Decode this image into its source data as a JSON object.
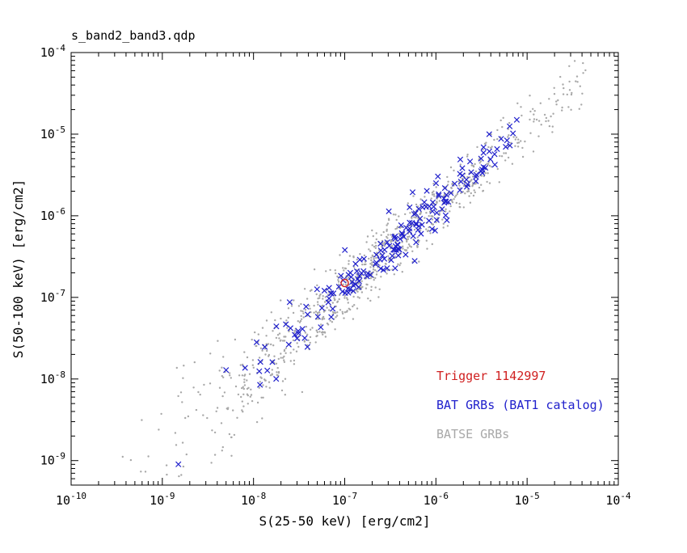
{
  "window": {
    "title": "s_band2_band3.qdp"
  },
  "chart_data": {
    "type": "scatter",
    "title": "s_band2_band3.qdp",
    "xlabel": "S(25-50 keV) [erg/cm2]",
    "ylabel": "S(50-100 keV) [erg/cm2]",
    "x_scale": "log",
    "y_scale": "log",
    "x_range_log10": [
      -10,
      -4
    ],
    "y_range_log10": [
      -9.3,
      -4
    ],
    "x_tick_exponents": [
      -10,
      -9,
      -8,
      -7,
      -6,
      -5,
      -4
    ],
    "y_tick_exponents": [
      -9,
      -8,
      -7,
      -6,
      -5,
      -4
    ],
    "grid": false,
    "frame_color": "#000000",
    "legend": {
      "position": "lower-right",
      "entries": [
        {
          "label": "Trigger 1142997",
          "color": "#d02020"
        },
        {
          "label": "BAT GRBs (BAT1 catalog)",
          "color": "#2020cc"
        },
        {
          "label": "BATSE GRBs",
          "color": "#a8a8a8"
        }
      ]
    },
    "series": [
      {
        "name": "BATSE GRBs",
        "marker": "point",
        "color": "#a8a8a8",
        "count": 950,
        "seed": 42,
        "logx_mean": -6.7,
        "logx_sigma": 1.15,
        "logx_min": -9.6,
        "logx_max": -4.35,
        "logy_offset": 0.08,
        "scatter_base": 0.18,
        "scatter_faint_slope": 0.12,
        "faint_ref_logx": -7.0
      },
      {
        "name": "BAT GRBs (BAT1 catalog)",
        "marker": "x",
        "color": "#2020cc",
        "count": 185,
        "seed": 7,
        "logx_mean": -6.35,
        "logx_sigma": 0.75,
        "logx_min": -8.7,
        "logx_max": -5.1,
        "logy_offset": 0.12,
        "scatter_base": 0.14,
        "scatter_faint_slope": 0.1,
        "faint_ref_logx": -7.2,
        "extra_points": [
          [
            1.5e-09,
            9e-10
          ],
          [
            7.7e-06,
            1.5e-05
          ]
        ]
      },
      {
        "name": "Trigger 1142997",
        "marker": "open-circle",
        "color": "#d02020",
        "points": [
          [
            1e-07,
            1.5e-07
          ]
        ]
      }
    ]
  }
}
